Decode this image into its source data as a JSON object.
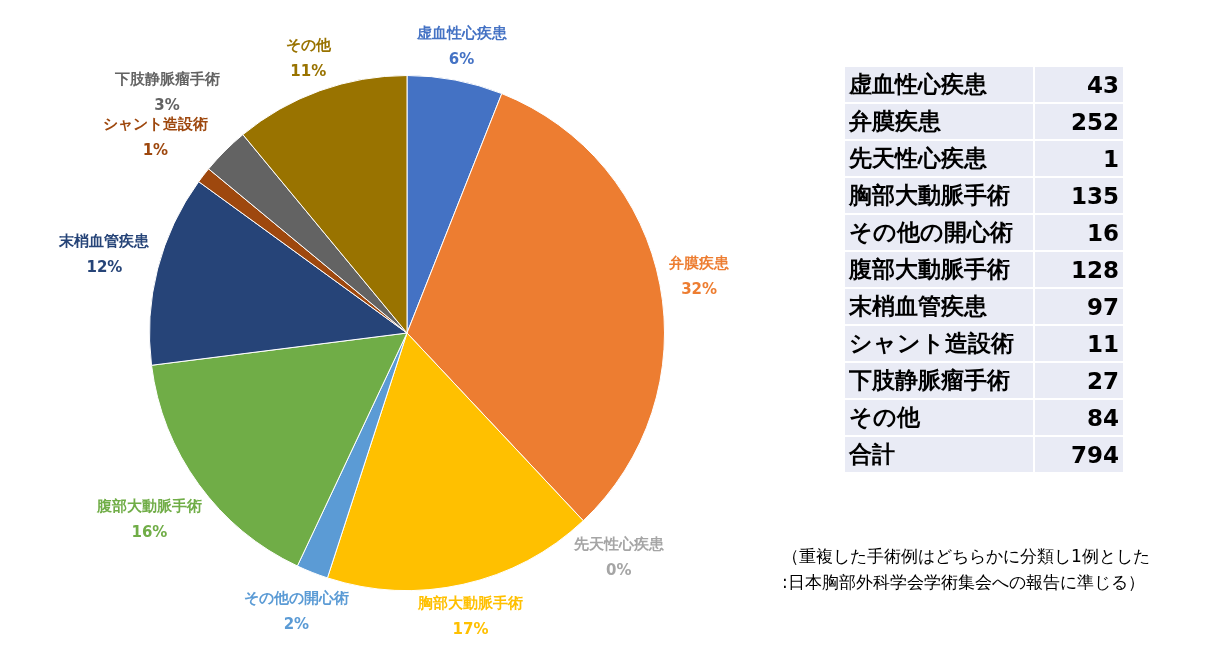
{
  "chart_data": [
    {
      "type": "pie",
      "categories": [
        "虚血性心疾患",
        "弁膜疾患",
        "先天性心疾患",
        "胸部大動脈手術",
        "その他の開心術",
        "腹部大動脈手術",
        "末梢血管疾患",
        "シャント造設術",
        "下肢静脈瘤手術",
        "その他"
      ],
      "values": [
        6,
        32,
        0,
        17,
        2,
        16,
        12,
        1,
        3,
        11
      ],
      "value_labels": [
        "6%",
        "32%",
        "0%",
        "17%",
        "2%",
        "16%",
        "12%",
        "1%",
        "3%",
        "11%"
      ],
      "colors": [
        "#4472c4",
        "#ed7d31",
        "#a5a5a5",
        "#ffc000",
        "#5b9bd5",
        "#70ad47",
        "#264478",
        "#9e480e",
        "#636363",
        "#997300"
      ],
      "data_labels": true,
      "legend": false
    },
    {
      "type": "other",
      "categories": [
        "虚血性心疾患",
        "弁膜疾患",
        "先天性心疾患",
        "胸部大動脈手術",
        "その他の開心術",
        "腹部大動脈手術",
        "末梢血管疾患",
        "シャント造設術",
        "下肢静脈瘤手術",
        "その他",
        "合計"
      ],
      "values": [
        43,
        252,
        1,
        135,
        16,
        128,
        97,
        11,
        27,
        84,
        794
      ],
      "data_labels": true,
      "annotations": [
        "（重複した手術例はどちらかに分類し1例とした",
        ":日本胸部外科学会学術集会への報告に準じる）"
      ]
    }
  ]
}
